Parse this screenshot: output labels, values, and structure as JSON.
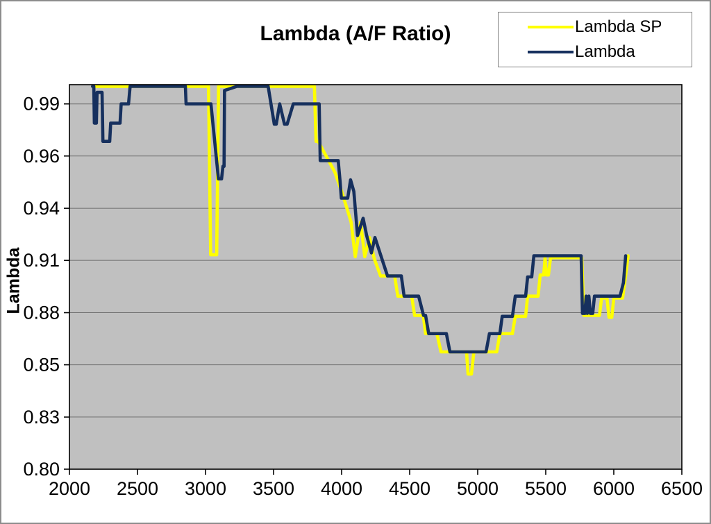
{
  "title": "Lambda (A/F Ratio)",
  "legend": {
    "items": [
      {
        "label": "Lambda SP",
        "color": "#FFFF00"
      },
      {
        "label": "Lambda",
        "color": "#16305E"
      }
    ]
  },
  "chart_data": {
    "type": "line",
    "title": "Lambda (A/F Ratio)",
    "xlabel": "",
    "ylabel": "Lambda",
    "xlim": [
      2000,
      6500
    ],
    "ylim": [
      0.8,
      1.0
    ],
    "x_ticks": [
      2000,
      2500,
      3000,
      3500,
      4000,
      4500,
      5000,
      5500,
      6000,
      6500
    ],
    "y_ticks": [
      0.8,
      0.8271,
      0.8543,
      0.8814,
      0.9086,
      0.9357,
      0.9629,
      0.99
    ],
    "y_tick_labels": [
      "0.80",
      "0.83",
      "0.85",
      "0.88",
      "0.91",
      "0.94",
      "0.96",
      "0.99"
    ],
    "grid": "horizontal",
    "plot_bg": "#C0C0C0",
    "gridline_color": "#6e6e6e",
    "legend_position": "top-right",
    "series": [
      {
        "name": "Lambda SP",
        "color": "#FFFF00",
        "points": [
          [
            2170,
            1.0
          ],
          [
            3022,
            1.0
          ],
          [
            3038,
            0.9115
          ],
          [
            3082,
            0.9115
          ],
          [
            3096,
            1.0
          ],
          [
            3800,
            1.0
          ],
          [
            3812,
            0.9705
          ],
          [
            3828,
            0.9705
          ],
          [
            3950,
            0.9545
          ],
          [
            4000,
            0.9445
          ],
          [
            4040,
            0.9355
          ],
          [
            4070,
            0.9285
          ],
          [
            4100,
            0.9105
          ],
          [
            4140,
            0.9285
          ],
          [
            4170,
            0.9105
          ],
          [
            4205,
            0.9205
          ],
          [
            4240,
            0.9095
          ],
          [
            4286,
            0.9005
          ],
          [
            4390,
            0.9005
          ],
          [
            4413,
            0.89
          ],
          [
            4515,
            0.89
          ],
          [
            4536,
            0.88
          ],
          [
            4600,
            0.88
          ],
          [
            4617,
            0.8705
          ],
          [
            4700,
            0.8705
          ],
          [
            4730,
            0.861
          ],
          [
            4918,
            0.861
          ],
          [
            4929,
            0.8495
          ],
          [
            4954,
            0.8495
          ],
          [
            4972,
            0.861
          ],
          [
            5140,
            0.861
          ],
          [
            5163,
            0.8705
          ],
          [
            5255,
            0.8705
          ],
          [
            5276,
            0.8795
          ],
          [
            5352,
            0.8795
          ],
          [
            5367,
            0.89
          ],
          [
            5444,
            0.89
          ],
          [
            5459,
            0.901
          ],
          [
            5485,
            0.901
          ],
          [
            5495,
            0.91
          ],
          [
            5505,
            0.901
          ],
          [
            5520,
            0.901
          ],
          [
            5535,
            0.91
          ],
          [
            5765,
            0.91
          ],
          [
            5780,
            0.88
          ],
          [
            5895,
            0.88
          ],
          [
            5910,
            0.889
          ],
          [
            5950,
            0.889
          ],
          [
            5965,
            0.879
          ],
          [
            5985,
            0.879
          ],
          [
            6000,
            0.889
          ],
          [
            6065,
            0.889
          ],
          [
            6080,
            0.897
          ],
          [
            6105,
            0.911
          ]
        ]
      },
      {
        "name": "Lambda",
        "color": "#16305E",
        "points": [
          [
            2170,
            1.0
          ],
          [
            2179,
            1.0
          ],
          [
            2183,
            0.98
          ],
          [
            2198,
            0.98
          ],
          [
            2203,
            0.996
          ],
          [
            2240,
            0.996
          ],
          [
            2246,
            0.9705
          ],
          [
            2296,
            0.9705
          ],
          [
            2303,
            0.98
          ],
          [
            2372,
            0.98
          ],
          [
            2380,
            0.99
          ],
          [
            2434,
            0.99
          ],
          [
            2446,
            1.0
          ],
          [
            2852,
            1.0
          ],
          [
            2857,
            0.99
          ],
          [
            3040,
            0.99
          ],
          [
            3095,
            0.951
          ],
          [
            3118,
            0.951
          ],
          [
            3128,
            0.9575
          ],
          [
            3136,
            0.9575
          ],
          [
            3140,
            0.997
          ],
          [
            3230,
            1.0
          ],
          [
            3460,
            1.0
          ],
          [
            3505,
            0.9795
          ],
          [
            3520,
            0.9795
          ],
          [
            3545,
            0.99
          ],
          [
            3580,
            0.9795
          ],
          [
            3600,
            0.9795
          ],
          [
            3645,
            0.99
          ],
          [
            3835,
            0.99
          ],
          [
            3843,
            0.9605
          ],
          [
            3975,
            0.9605
          ],
          [
            3988,
            0.9505
          ],
          [
            3998,
            0.941
          ],
          [
            4045,
            0.941
          ],
          [
            4066,
            0.9505
          ],
          [
            4090,
            0.9445
          ],
          [
            4117,
            0.9215
          ],
          [
            4158,
            0.9305
          ],
          [
            4184,
            0.9215
          ],
          [
            4219,
            0.9125
          ],
          [
            4245,
            0.9205
          ],
          [
            4337,
            0.9005
          ],
          [
            4439,
            0.9005
          ],
          [
            4459,
            0.89
          ],
          [
            4566,
            0.89
          ],
          [
            4602,
            0.88
          ],
          [
            4617,
            0.88
          ],
          [
            4640,
            0.8705
          ],
          [
            4770,
            0.8705
          ],
          [
            4796,
            0.861
          ],
          [
            5061,
            0.861
          ],
          [
            5086,
            0.8705
          ],
          [
            5163,
            0.8705
          ],
          [
            5180,
            0.8795
          ],
          [
            5255,
            0.8795
          ],
          [
            5276,
            0.89
          ],
          [
            5352,
            0.89
          ],
          [
            5367,
            0.9
          ],
          [
            5397,
            0.9
          ],
          [
            5413,
            0.911
          ],
          [
            5760,
            0.911
          ],
          [
            5770,
            0.881
          ],
          [
            5788,
            0.881
          ],
          [
            5797,
            0.89
          ],
          [
            5805,
            0.881
          ],
          [
            5817,
            0.89
          ],
          [
            5828,
            0.881
          ],
          [
            5845,
            0.881
          ],
          [
            5858,
            0.89
          ],
          [
            6046,
            0.89
          ],
          [
            6071,
            0.897
          ],
          [
            6087,
            0.911
          ]
        ]
      }
    ]
  }
}
